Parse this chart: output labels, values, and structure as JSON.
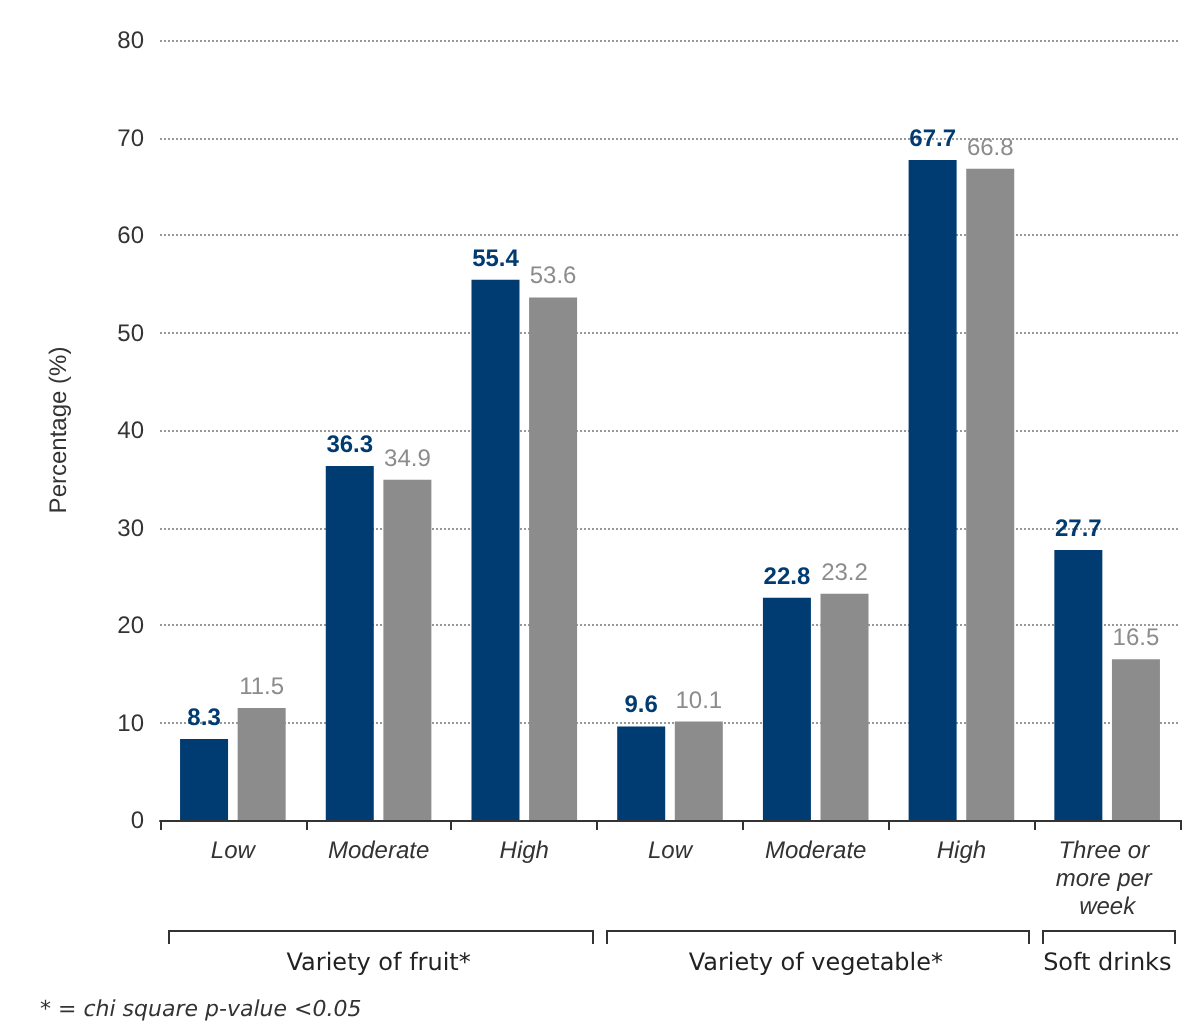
{
  "chart_data": {
    "type": "bar",
    "categories": [
      "Low",
      "Moderate",
      "High",
      "Low",
      "Moderate",
      "High",
      "Three or more per week"
    ],
    "series": [
      {
        "color": "#003b71",
        "values": [
          8.3,
          36.3,
          55.4,
          9.6,
          22.8,
          67.7,
          27.7
        ]
      },
      {
        "color": "#8c8c8c",
        "values": [
          11.5,
          34.9,
          53.6,
          10.1,
          23.2,
          66.8,
          16.5
        ]
      }
    ],
    "ylabel": "Percentage (%)",
    "ylim": [
      0,
      80
    ],
    "yticks": [
      0,
      10,
      20,
      30,
      40,
      50,
      60,
      70,
      80
    ],
    "grid": "y",
    "data_labels": true,
    "annotations": [
      "Variety of fruit*",
      "Variety of vegetable*",
      "Soft drinks",
      "* = chi square p-value <0.05"
    ]
  }
}
